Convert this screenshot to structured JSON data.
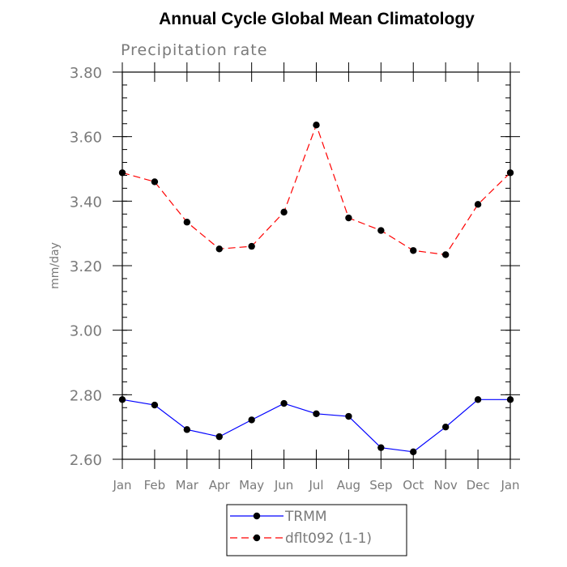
{
  "chart_data": {
    "type": "line",
    "title": "Annual Cycle Global Mean Climatology",
    "subtitle": "Precipitation rate",
    "ylabel": "mm/day",
    "xlabel": "",
    "categories": [
      "Jan",
      "Feb",
      "Mar",
      "Apr",
      "May",
      "Jun",
      "Jul",
      "Aug",
      "Sep",
      "Oct",
      "Nov",
      "Dec",
      "Jan"
    ],
    "ylim": [
      2.6,
      3.8
    ],
    "yticks": [
      "2.60",
      "2.80",
      "3.00",
      "3.20",
      "3.40",
      "3.60",
      "3.80"
    ],
    "series": [
      {
        "name": "TRMM",
        "color": "#0000ff",
        "dash": "solid",
        "values": [
          2.785,
          2.768,
          2.692,
          2.67,
          2.722,
          2.773,
          2.741,
          2.733,
          2.636,
          2.623,
          2.7,
          2.785,
          2.785
        ]
      },
      {
        "name": "dflt092 (1-1)",
        "color": "#ff0000",
        "dash": "dashed",
        "values": [
          3.488,
          3.46,
          3.335,
          3.252,
          3.26,
          3.366,
          3.636,
          3.348,
          3.309,
          3.247,
          3.234,
          3.39,
          3.488
        ]
      }
    ],
    "legend_position": "bottom-center",
    "grid": false
  }
}
